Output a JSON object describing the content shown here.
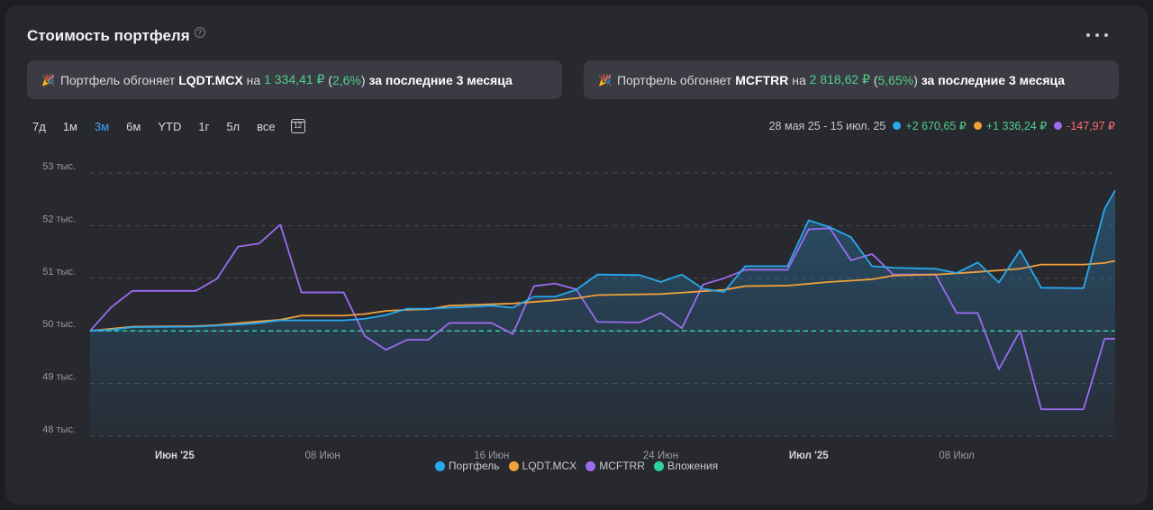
{
  "header": {
    "title": "Стоимость портфеля",
    "help_icon": "question-circle-icon",
    "more_icon": "more-horizontal-icon"
  },
  "banners": [
    {
      "icon": "party-popper-icon",
      "prefix": "Портфель обгоняет",
      "ticker": "LQDT.MCX",
      "mid": "на",
      "amount": "1 334,41 ₽",
      "percent": "2,6%",
      "suffix": "за последние 3 месяца"
    },
    {
      "icon": "party-popper-icon",
      "prefix": "Портфель обгоняет",
      "ticker": "MCFTRR",
      "mid": "на",
      "amount": "2 818,62 ₽",
      "percent": "5,65%",
      "suffix": "за последние 3 месяца"
    }
  ],
  "ranges": [
    "7д",
    "1м",
    "3м",
    "6м",
    "YTD",
    "1г",
    "5л",
    "все"
  ],
  "active_range": "3м",
  "calendar_icon": "calendar-icon",
  "summary": {
    "period": "28 мая 25 - 15 июл. 25",
    "items": [
      {
        "color": "#29a9ee",
        "value": "+2 670,65 ₽",
        "sign": "pos"
      },
      {
        "color": "#f0a13a",
        "value": "+1 336,24 ₽",
        "sign": "pos"
      },
      {
        "color": "#9b6cf0",
        "value": "-147,97 ₽",
        "sign": "neg"
      }
    ]
  },
  "colors": {
    "portfolio": "#29a9ee",
    "lqdt": "#f0a13a",
    "mcftrr": "#9b6cf0",
    "invest": "#2fd0a3",
    "positive": "#4fd08a",
    "negative": "#ff6b6b",
    "accent": "#3ea6ff"
  },
  "chart_data": {
    "type": "line",
    "y_ticks": [
      {
        "v": 53000,
        "label": "53 тыс."
      },
      {
        "v": 52000,
        "label": "52 тыс."
      },
      {
        "v": 51000,
        "label": "51 тыс."
      },
      {
        "v": 50000,
        "label": "50 тыс."
      },
      {
        "v": 49000,
        "label": "49 тыс."
      },
      {
        "v": 48000,
        "label": "48 тыс."
      }
    ],
    "ylim": [
      48000,
      53000
    ],
    "x_range": [
      "2025-05-28",
      "2025-07-15"
    ],
    "x_ticks": [
      {
        "date": "2025-06-01",
        "label": "Июн '25",
        "bold": true
      },
      {
        "date": "2025-06-08",
        "label": "08 Июн",
        "bold": false
      },
      {
        "date": "2025-06-16",
        "label": "16 Июн",
        "bold": false
      },
      {
        "date": "2025-06-24",
        "label": "24 Июн",
        "bold": false
      },
      {
        "date": "2025-07-01",
        "label": "Июл '25",
        "bold": true
      },
      {
        "date": "2025-07-08",
        "label": "08 Июл",
        "bold": false
      }
    ],
    "series": [
      {
        "name": "Портфель",
        "key": "portfolio",
        "points": [
          [
            "2025-05-28",
            50000
          ],
          [
            "2025-05-29",
            50020
          ],
          [
            "2025-05-30",
            50070
          ],
          [
            "2025-06-02",
            50080
          ],
          [
            "2025-06-03",
            50100
          ],
          [
            "2025-06-04",
            50120
          ],
          [
            "2025-06-05",
            50150
          ],
          [
            "2025-06-06",
            50200
          ],
          [
            "2025-06-09",
            50200
          ],
          [
            "2025-06-10",
            50230
          ],
          [
            "2025-06-11",
            50300
          ],
          [
            "2025-06-12",
            50420
          ],
          [
            "2025-06-13",
            50420
          ],
          [
            "2025-06-16",
            50480
          ],
          [
            "2025-06-17",
            50440
          ],
          [
            "2025-06-18",
            50650
          ],
          [
            "2025-06-19",
            50650
          ],
          [
            "2025-06-20",
            50780
          ],
          [
            "2025-06-21",
            51070
          ],
          [
            "2025-06-23",
            51060
          ],
          [
            "2025-06-24",
            50930
          ],
          [
            "2025-06-25",
            51070
          ],
          [
            "2025-06-26",
            50800
          ],
          [
            "2025-06-27",
            50740
          ],
          [
            "2025-06-28",
            51230
          ],
          [
            "2025-06-30",
            51230
          ],
          [
            "2025-07-01",
            52100
          ],
          [
            "2025-07-02",
            51970
          ],
          [
            "2025-07-03",
            51780
          ],
          [
            "2025-07-04",
            51230
          ],
          [
            "2025-07-05",
            51200
          ],
          [
            "2025-07-07",
            51180
          ],
          [
            "2025-07-08",
            51100
          ],
          [
            "2025-07-09",
            51300
          ],
          [
            "2025-07-10",
            50920
          ],
          [
            "2025-07-11",
            51530
          ],
          [
            "2025-07-12",
            50820
          ],
          [
            "2025-07-14",
            50810
          ],
          [
            "2025-07-15",
            52320
          ],
          [
            "2025-07-15.5",
            52670
          ]
        ]
      },
      {
        "name": "LQDT.MCX",
        "key": "lqdt",
        "points": [
          [
            "2025-05-28",
            50000
          ],
          [
            "2025-05-30",
            50080
          ],
          [
            "2025-06-02",
            50090
          ],
          [
            "2025-06-03",
            50110
          ],
          [
            "2025-06-05",
            50180
          ],
          [
            "2025-06-06",
            50210
          ],
          [
            "2025-06-07",
            50290
          ],
          [
            "2025-06-09",
            50290
          ],
          [
            "2025-06-10",
            50320
          ],
          [
            "2025-06-11",
            50380
          ],
          [
            "2025-06-12",
            50400
          ],
          [
            "2025-06-13",
            50410
          ],
          [
            "2025-06-14",
            50480
          ],
          [
            "2025-06-17",
            50520
          ],
          [
            "2025-06-19",
            50580
          ],
          [
            "2025-06-20",
            50620
          ],
          [
            "2025-06-21",
            50680
          ],
          [
            "2025-06-24",
            50700
          ],
          [
            "2025-06-27",
            50780
          ],
          [
            "2025-06-28",
            50850
          ],
          [
            "2025-06-30",
            50860
          ],
          [
            "2025-07-02",
            50930
          ],
          [
            "2025-07-04",
            50980
          ],
          [
            "2025-07-05",
            51050
          ],
          [
            "2025-07-07",
            51070
          ],
          [
            "2025-07-09",
            51120
          ],
          [
            "2025-07-11",
            51180
          ],
          [
            "2025-07-12",
            51260
          ],
          [
            "2025-07-14",
            51260
          ],
          [
            "2025-07-15",
            51290
          ],
          [
            "2025-07-15.5",
            51330
          ]
        ]
      },
      {
        "name": "MCFTRR",
        "key": "mcftrr",
        "points": [
          [
            "2025-05-28",
            50000
          ],
          [
            "2025-05-29",
            50450
          ],
          [
            "2025-05-30",
            50760
          ],
          [
            "2025-06-02",
            50760
          ],
          [
            "2025-06-03",
            50990
          ],
          [
            "2025-06-04",
            51600
          ],
          [
            "2025-06-05",
            51660
          ],
          [
            "2025-06-06",
            52020
          ],
          [
            "2025-06-07",
            50730
          ],
          [
            "2025-06-09",
            50730
          ],
          [
            "2025-06-10",
            49900
          ],
          [
            "2025-06-11",
            49640
          ],
          [
            "2025-06-12",
            49830
          ],
          [
            "2025-06-13",
            49830
          ],
          [
            "2025-06-14",
            50150
          ],
          [
            "2025-06-16",
            50150
          ],
          [
            "2025-06-17",
            49940
          ],
          [
            "2025-06-18",
            50850
          ],
          [
            "2025-06-19",
            50900
          ],
          [
            "2025-06-20",
            50790
          ],
          [
            "2025-06-21",
            50170
          ],
          [
            "2025-06-23",
            50160
          ],
          [
            "2025-06-24",
            50340
          ],
          [
            "2025-06-25",
            50050
          ],
          [
            "2025-06-26",
            50880
          ],
          [
            "2025-06-27",
            51000
          ],
          [
            "2025-06-28",
            51160
          ],
          [
            "2025-06-30",
            51160
          ],
          [
            "2025-07-01",
            51930
          ],
          [
            "2025-07-02",
            51950
          ],
          [
            "2025-07-03",
            51340
          ],
          [
            "2025-07-04",
            51460
          ],
          [
            "2025-07-05",
            51070
          ],
          [
            "2025-07-07",
            51070
          ],
          [
            "2025-07-08",
            50340
          ],
          [
            "2025-07-09",
            50340
          ],
          [
            "2025-07-10",
            49270
          ],
          [
            "2025-07-11",
            50000
          ],
          [
            "2025-07-12",
            48510
          ],
          [
            "2025-07-14",
            48510
          ],
          [
            "2025-07-15",
            49850
          ],
          [
            "2025-07-15.5",
            49850
          ]
        ]
      },
      {
        "name": "Вложения",
        "key": "invest",
        "points": [
          [
            "2025-05-28",
            50000
          ],
          [
            "2025-07-15.5",
            50000
          ]
        ]
      }
    ],
    "grid": true,
    "legend_position": "bottom-center"
  }
}
